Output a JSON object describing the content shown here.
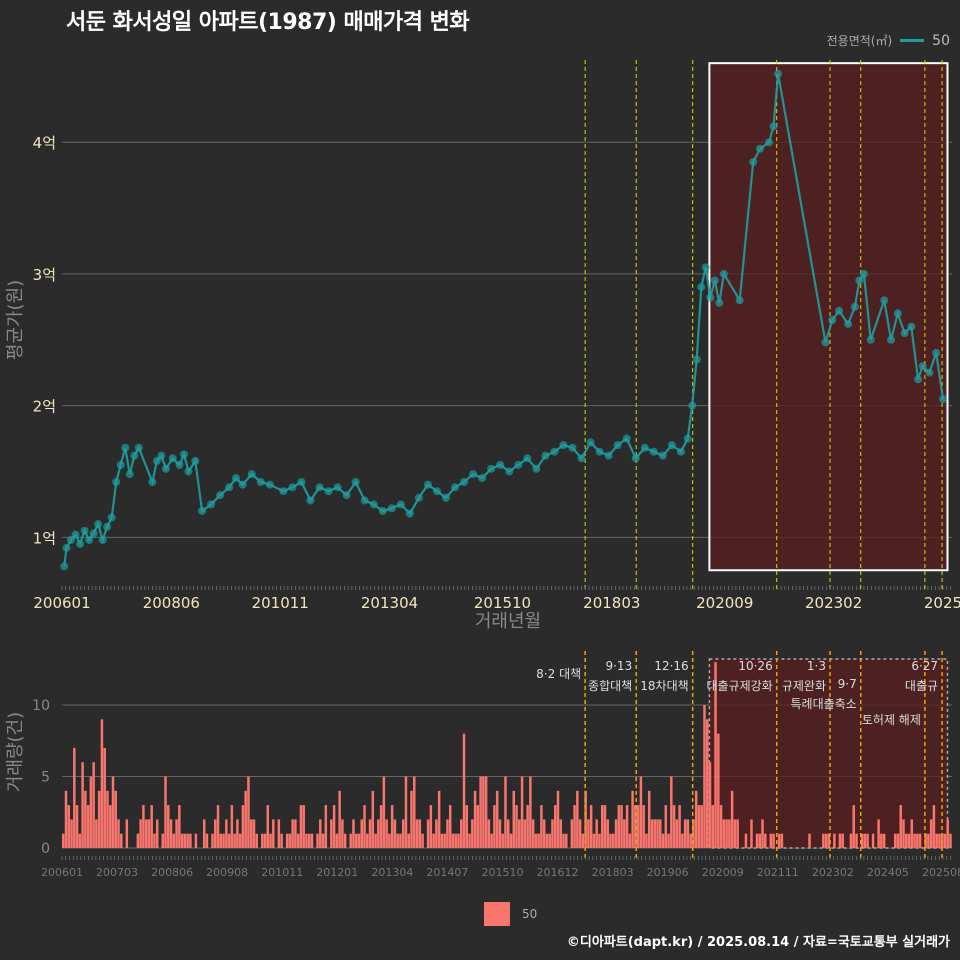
{
  "title": "서둔 화서성일 아파트(1987) 매매가격 변화",
  "legend": {
    "title": "전용면적(㎡)",
    "label": "50"
  },
  "colors": {
    "price_line": "#1f9e9e",
    "volume_bar": "#f8766d",
    "policy_line": "#e8d400",
    "policy_line_bottom": "#e8a800",
    "highlight_fill": "#5a1f1f",
    "highlight_border": "#ffffff"
  },
  "footer": "©디아파트(dapt.kr) / 2025.08.14 / 자료=국토교통부 실거래가",
  "chart_data": [
    {
      "type": "line",
      "xlabel": "거래년월",
      "ylabel": "평균가(원)",
      "x_ticks": [
        "200601",
        "200806",
        "201011",
        "201304",
        "201510",
        "201803",
        "202009",
        "202302",
        "2025"
      ],
      "y_ticks": [
        "1억",
        "2억",
        "3억",
        "4억"
      ],
      "y_tick_values": [
        1,
        2,
        3,
        4
      ],
      "ylim": [
        0.6,
        4.7
      ],
      "xlim": [
        2006.0,
        2025.7
      ],
      "grid": true,
      "policy_dates": [
        2017.58,
        2018.71,
        2019.96,
        2021.82,
        2023.0,
        2023.68,
        2025.1,
        2025.48
      ],
      "highlight_range": {
        "x": [
          2020.33,
          2025.6
        ],
        "y": [
          0.75,
          4.6
        ]
      },
      "series": [
        {
          "name": "50",
          "points": [
            [
              2006.05,
              0.78
            ],
            [
              2006.1,
              0.92
            ],
            [
              2006.2,
              0.98
            ],
            [
              2006.3,
              1.02
            ],
            [
              2006.4,
              0.95
            ],
            [
              2006.5,
              1.05
            ],
            [
              2006.6,
              0.98
            ],
            [
              2006.7,
              1.03
            ],
            [
              2006.8,
              1.1
            ],
            [
              2006.9,
              0.98
            ],
            [
              2007.0,
              1.08
            ],
            [
              2007.1,
              1.15
            ],
            [
              2007.2,
              1.42
            ],
            [
              2007.3,
              1.55
            ],
            [
              2007.4,
              1.68
            ],
            [
              2007.5,
              1.48
            ],
            [
              2007.6,
              1.62
            ],
            [
              2007.7,
              1.68
            ],
            [
              2008.0,
              1.42
            ],
            [
              2008.1,
              1.58
            ],
            [
              2008.2,
              1.62
            ],
            [
              2008.3,
              1.52
            ],
            [
              2008.45,
              1.6
            ],
            [
              2008.6,
              1.55
            ],
            [
              2008.7,
              1.63
            ],
            [
              2008.8,
              1.5
            ],
            [
              2008.95,
              1.58
            ],
            [
              2009.1,
              1.2
            ],
            [
              2009.3,
              1.25
            ],
            [
              2009.5,
              1.32
            ],
            [
              2009.7,
              1.38
            ],
            [
              2009.85,
              1.45
            ],
            [
              2010.0,
              1.4
            ],
            [
              2010.2,
              1.48
            ],
            [
              2010.4,
              1.42
            ],
            [
              2010.6,
              1.4
            ],
            [
              2010.9,
              1.35
            ],
            [
              2011.1,
              1.38
            ],
            [
              2011.3,
              1.42
            ],
            [
              2011.5,
              1.28
            ],
            [
              2011.7,
              1.38
            ],
            [
              2011.9,
              1.35
            ],
            [
              2012.1,
              1.38
            ],
            [
              2012.3,
              1.32
            ],
            [
              2012.5,
              1.42
            ],
            [
              2012.7,
              1.28
            ],
            [
              2012.9,
              1.25
            ],
            [
              2013.1,
              1.2
            ],
            [
              2013.3,
              1.22
            ],
            [
              2013.5,
              1.25
            ],
            [
              2013.7,
              1.18
            ],
            [
              2013.9,
              1.3
            ],
            [
              2014.1,
              1.4
            ],
            [
              2014.3,
              1.35
            ],
            [
              2014.5,
              1.3
            ],
            [
              2014.7,
              1.38
            ],
            [
              2014.9,
              1.42
            ],
            [
              2015.1,
              1.48
            ],
            [
              2015.3,
              1.45
            ],
            [
              2015.5,
              1.52
            ],
            [
              2015.7,
              1.55
            ],
            [
              2015.9,
              1.5
            ],
            [
              2016.1,
              1.55
            ],
            [
              2016.3,
              1.6
            ],
            [
              2016.5,
              1.52
            ],
            [
              2016.7,
              1.62
            ],
            [
              2016.9,
              1.65
            ],
            [
              2017.1,
              1.7
            ],
            [
              2017.3,
              1.68
            ],
            [
              2017.5,
              1.6
            ],
            [
              2017.7,
              1.72
            ],
            [
              2017.9,
              1.65
            ],
            [
              2018.1,
              1.62
            ],
            [
              2018.3,
              1.7
            ],
            [
              2018.5,
              1.75
            ],
            [
              2018.7,
              1.6
            ],
            [
              2018.9,
              1.68
            ],
            [
              2019.1,
              1.65
            ],
            [
              2019.3,
              1.62
            ],
            [
              2019.5,
              1.7
            ],
            [
              2019.7,
              1.65
            ],
            [
              2019.85,
              1.75
            ],
            [
              2019.95,
              2.0
            ],
            [
              2020.05,
              2.35
            ],
            [
              2020.15,
              2.9
            ],
            [
              2020.25,
              3.05
            ],
            [
              2020.35,
              2.82
            ],
            [
              2020.45,
              2.95
            ],
            [
              2020.55,
              2.78
            ],
            [
              2020.65,
              3.0
            ],
            [
              2021.0,
              2.8
            ],
            [
              2021.3,
              3.85
            ],
            [
              2021.45,
              3.95
            ],
            [
              2021.65,
              4.0
            ],
            [
              2021.75,
              4.12
            ],
            [
              2021.85,
              4.52
            ],
            [
              2022.9,
              2.48
            ],
            [
              2023.05,
              2.65
            ],
            [
              2023.2,
              2.72
            ],
            [
              2023.4,
              2.62
            ],
            [
              2023.55,
              2.75
            ],
            [
              2023.65,
              2.95
            ],
            [
              2023.75,
              3.0
            ],
            [
              2023.9,
              2.5
            ],
            [
              2024.2,
              2.8
            ],
            [
              2024.35,
              2.5
            ],
            [
              2024.5,
              2.7
            ],
            [
              2024.65,
              2.55
            ],
            [
              2024.8,
              2.6
            ],
            [
              2024.95,
              2.2
            ],
            [
              2025.05,
              2.3
            ],
            [
              2025.2,
              2.25
            ],
            [
              2025.35,
              2.4
            ],
            [
              2025.5,
              2.05
            ]
          ]
        }
      ]
    },
    {
      "type": "bar",
      "ylabel": "거래량(건)",
      "x_ticks": [
        "200601",
        "200703",
        "200806",
        "200908",
        "201011",
        "201201",
        "201304",
        "201407",
        "201510",
        "201612",
        "201803",
        "201906",
        "202009",
        "202111",
        "202302",
        "202405",
        "202508"
      ],
      "y_ticks": [
        "0",
        "5",
        "10"
      ],
      "y_tick_values": [
        0,
        5,
        10
      ],
      "ylim": [
        0,
        13.5
      ],
      "grid": true,
      "policy_labels": [
        {
          "date": "8·2 대책",
          "x": 2017.58
        },
        {
          "date": "9·13",
          "text": "종합대책",
          "x": 2018.71
        },
        {
          "date": "12·16",
          "text": "18차대책",
          "x": 2019.96
        },
        {
          "date": "10·26",
          "text": "대출규제강화",
          "x": 2021.82
        },
        {
          "date": "1·3",
          "text": "규제완화",
          "x": 2023.0
        },
        {
          "date": "9·7",
          "text": "특례대출축소",
          "x": 2023.68
        },
        {
          "date": "",
          "text": "토허제 해제",
          "x": 2025.1
        },
        {
          "date": "6·27",
          "text": "대출규",
          "x": 2025.48
        }
      ],
      "highlight_range": {
        "x": [
          2020.33,
          2025.6
        ]
      },
      "series": [
        {
          "name": "50",
          "values": [
            1,
            4,
            3,
            2,
            7,
            3,
            1,
            6,
            4,
            3,
            5,
            6,
            2,
            4,
            9,
            7,
            4,
            3,
            5,
            4,
            2,
            1,
            0,
            2,
            0,
            0,
            0,
            1,
            2,
            3,
            2,
            2,
            3,
            1,
            2,
            0,
            1,
            5,
            3,
            2,
            1,
            2,
            3,
            1,
            1,
            1,
            1,
            0,
            1,
            0,
            0,
            2,
            1,
            0,
            1,
            2,
            3,
            1,
            1,
            2,
            1,
            3,
            1,
            2,
            1,
            3,
            4,
            5,
            2,
            2,
            1,
            0,
            1,
            1,
            3,
            1,
            2,
            0,
            2,
            1,
            0,
            1,
            1,
            2,
            2,
            1,
            3,
            3,
            1,
            1,
            1,
            0,
            1,
            2,
            1,
            3,
            0,
            2,
            3,
            1,
            4,
            2,
            1,
            0,
            1,
            2,
            1,
            1,
            2,
            3,
            1,
            2,
            4,
            1,
            2,
            3,
            5,
            2,
            1,
            3,
            2,
            1,
            1,
            2,
            5,
            1,
            4,
            5,
            2,
            2,
            1,
            0,
            2,
            3,
            1,
            2,
            4,
            1,
            1,
            2,
            3,
            1,
            1,
            1,
            2,
            8,
            3,
            1,
            2,
            4,
            3,
            5,
            5,
            5,
            2,
            1,
            3,
            4,
            2,
            1,
            5,
            2,
            1,
            4,
            3,
            2,
            5,
            2,
            3,
            5,
            2,
            1,
            1,
            3,
            2,
            1,
            1,
            2,
            3,
            4,
            2,
            1,
            1,
            0,
            2,
            3,
            4,
            2,
            1,
            4,
            2,
            3,
            1,
            2,
            1,
            3,
            3,
            2,
            1,
            1,
            2,
            3,
            3,
            2,
            3,
            1,
            4,
            3,
            3,
            5,
            3,
            1,
            4,
            2,
            2,
            2,
            2,
            1,
            3,
            1,
            5,
            3,
            2,
            3,
            1,
            2,
            2,
            1,
            2,
            4,
            3,
            3,
            10,
            9,
            6,
            3,
            13,
            8,
            3,
            2,
            2,
            2,
            4,
            2,
            2,
            0,
            0,
            1,
            0,
            2,
            0,
            1,
            1,
            2,
            1,
            0,
            1,
            1,
            0,
            1,
            1,
            0,
            0,
            0,
            0,
            0,
            0,
            0,
            0,
            0,
            1,
            0,
            0,
            0,
            0,
            1,
            1,
            1,
            0,
            1,
            0,
            1,
            1,
            0,
            0,
            1,
            3,
            1,
            0,
            1,
            1,
            1,
            0,
            1,
            0,
            2,
            1,
            1,
            0,
            0,
            0,
            1,
            1,
            3,
            2,
            1,
            1,
            2,
            1,
            1,
            1,
            0,
            1,
            1,
            2,
            3,
            1,
            1,
            1,
            1,
            2,
            1
          ]
        }
      ]
    }
  ]
}
